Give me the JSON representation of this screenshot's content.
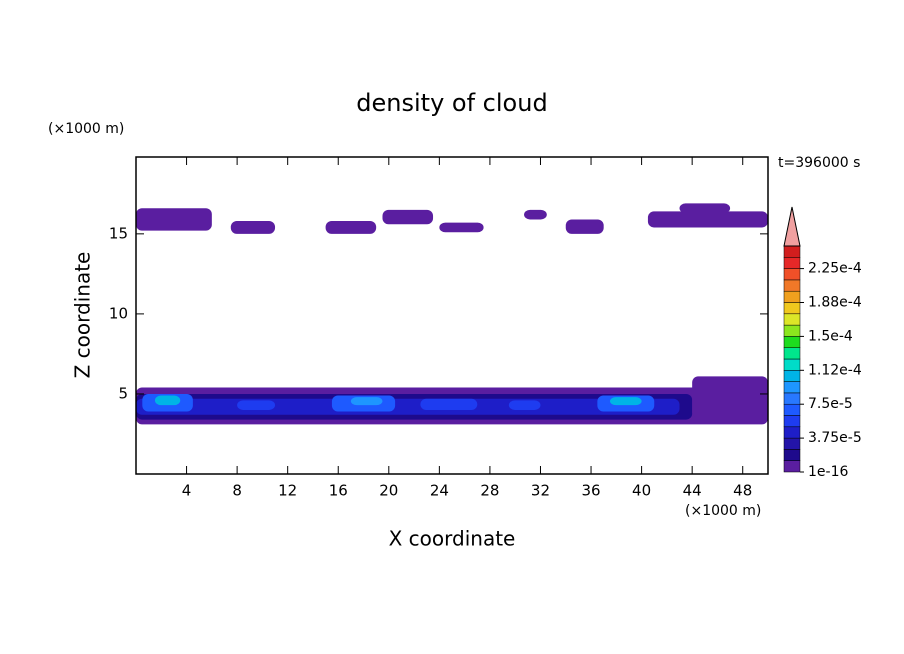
{
  "chart_data": {
    "type": "contour",
    "title": "density of cloud",
    "x_label": "X coordinate",
    "y_label": "Z coordinate",
    "x_unit": "(×1000 m)",
    "y_unit": "(×1000 m)",
    "time_label": "t=396000 s",
    "xlim": [
      0,
      50
    ],
    "ylim": [
      0,
      19.8
    ],
    "xticks": [
      4,
      8,
      12,
      16,
      20,
      24,
      28,
      32,
      36,
      40,
      44,
      48
    ],
    "yticks": [
      5,
      10,
      15
    ],
    "colorbar_lim": [
      0,
      0.00025
    ],
    "colorbar_ticks": [
      {
        "value": 1e-16,
        "label": "1e-16"
      },
      {
        "value": 3.75e-05,
        "label": "3.75e-5"
      },
      {
        "value": 7.5e-05,
        "label": "7.5e-5"
      },
      {
        "value": 0.0001125,
        "label": "1.12e-4"
      },
      {
        "value": 0.00015,
        "label": "1.5e-4"
      },
      {
        "value": 0.0001875,
        "label": "1.88e-4"
      },
      {
        "value": 0.000225,
        "label": "2.25e-4"
      }
    ],
    "level_colors": [
      "#5a1ea0",
      "#1e0a8c",
      "#2314a8",
      "#1e1ec8",
      "#1e3cf0",
      "#1e5aff",
      "#2878ff",
      "#1e96ff",
      "#00b4e6",
      "#00dcc8",
      "#00e68c",
      "#1edc1e",
      "#8ce61e",
      "#dce628",
      "#f0c81e",
      "#f0a01e",
      "#f07828",
      "#f05028",
      "#e62828",
      "#d21e1e"
    ],
    "overflow_color": "#f0a0a0",
    "cells": [
      {
        "x": [
          0,
          6
        ],
        "z": [
          15.2,
          16.6
        ],
        "value": 1e-06
      },
      {
        "x": [
          7.5,
          11
        ],
        "z": [
          15,
          15.8
        ],
        "value": 1e-06
      },
      {
        "x": [
          15,
          19
        ],
        "z": [
          15,
          15.8
        ],
        "value": 1e-06
      },
      {
        "x": [
          19.5,
          23.5
        ],
        "z": [
          15.6,
          16.5
        ],
        "value": 1e-06
      },
      {
        "x": [
          24,
          27.5
        ],
        "z": [
          15.1,
          15.7
        ],
        "value": 1e-06
      },
      {
        "x": [
          30.7,
          32.5
        ],
        "z": [
          15.9,
          16.5
        ],
        "value": 1e-06
      },
      {
        "x": [
          34,
          37
        ],
        "z": [
          15,
          15.9
        ],
        "value": 1e-06
      },
      {
        "x": [
          40.5,
          50
        ],
        "z": [
          15.4,
          16.4
        ],
        "value": 1e-06
      },
      {
        "x": [
          43,
          47
        ],
        "z": [
          16.3,
          16.9
        ],
        "value": 1e-06
      },
      {
        "x": [
          0,
          50
        ],
        "z": [
          3.1,
          5.4
        ],
        "value": 1e-06
      },
      {
        "x": [
          0,
          44
        ],
        "z": [
          3.4,
          5
        ],
        "value": 2e-05
      },
      {
        "x": [
          44,
          50
        ],
        "z": [
          3.5,
          6.1
        ],
        "value": 1e-06
      },
      {
        "x": [
          0,
          43
        ],
        "z": [
          3.7,
          4.7
        ],
        "value": 4e-05
      },
      {
        "x": [
          0.5,
          4.5
        ],
        "z": [
          3.9,
          5
        ],
        "value": 7e-05
      },
      {
        "x": [
          15.5,
          20.5
        ],
        "z": [
          3.9,
          4.9
        ],
        "value": 7e-05
      },
      {
        "x": [
          36.5,
          41
        ],
        "z": [
          3.9,
          4.9
        ],
        "value": 7e-05
      },
      {
        "x": [
          8,
          11
        ],
        "z": [
          4,
          4.6
        ],
        "value": 6e-05
      },
      {
        "x": [
          22.5,
          27
        ],
        "z": [
          4,
          4.7
        ],
        "value": 6e-05
      },
      {
        "x": [
          29.5,
          32
        ],
        "z": [
          4,
          4.6
        ],
        "value": 6e-05
      },
      {
        "x": [
          1.5,
          3.5
        ],
        "z": [
          4.3,
          4.9
        ],
        "value": 0.000105
      },
      {
        "x": [
          17,
          19.5
        ],
        "z": [
          4.3,
          4.8
        ],
        "value": 9e-05
      },
      {
        "x": [
          37.5,
          40
        ],
        "z": [
          4.3,
          4.8
        ],
        "value": 0.0001
      }
    ]
  }
}
